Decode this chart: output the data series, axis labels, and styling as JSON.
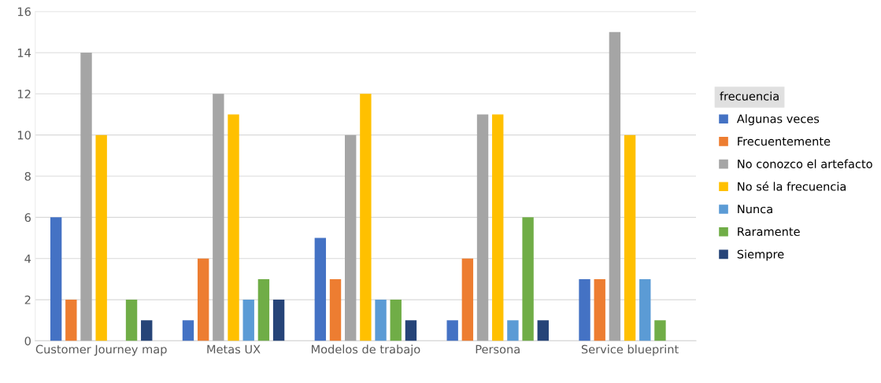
{
  "chart_data": {
    "type": "bar",
    "categories": [
      "Customer Journey map",
      "Metas UX",
      "Modelos de trabajo",
      "Persona",
      "Service blueprint"
    ],
    "series": [
      {
        "name": "Algunas veces",
        "color": "#4472c4",
        "values": [
          6,
          1,
          5,
          1,
          3
        ]
      },
      {
        "name": "Frecuentemente",
        "color": "#ed7d31",
        "values": [
          2,
          4,
          3,
          4,
          3
        ]
      },
      {
        "name": "No conozco el artefacto",
        "color": "#a5a5a5",
        "values": [
          14,
          12,
          10,
          11,
          15
        ]
      },
      {
        "name": "No sé la frecuencia",
        "color": "#ffc000",
        "values": [
          10,
          11,
          12,
          11,
          10
        ]
      },
      {
        "name": "Nunca",
        "color": "#5b9bd5",
        "values": [
          null,
          2,
          2,
          1,
          3
        ]
      },
      {
        "name": "Raramente",
        "color": "#70ad47",
        "values": [
          2,
          3,
          2,
          6,
          1
        ]
      },
      {
        "name": "Siempre",
        "color": "#264478",
        "values": [
          1,
          2,
          1,
          1,
          null
        ]
      }
    ],
    "legend_title": "frecuencia",
    "legend": "right",
    "ylim": [
      0,
      16
    ],
    "yticks": [
      0,
      2,
      4,
      6,
      8,
      10,
      12,
      14,
      16
    ],
    "grid": "y"
  }
}
